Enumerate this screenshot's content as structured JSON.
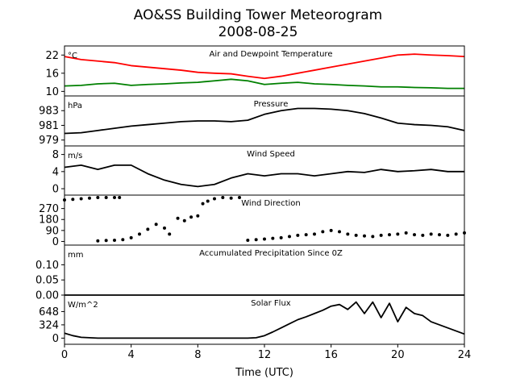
{
  "title": "AO&SS Building Tower Meteorogram",
  "subtitle": "2008-08-25",
  "xlabel": "Time (UTC)",
  "x_ticks": [
    "0",
    "4",
    "8",
    "12",
    "16",
    "20",
    "24"
  ],
  "colors": {
    "temperature": "#ff0000",
    "dewpoint": "#008000",
    "line": "#000000"
  },
  "chart_data": [
    {
      "type": "line",
      "label": "Air and Dewpoint Temperature",
      "unit": "°C",
      "ylim": [
        8.5,
        25
      ],
      "yticks": [
        "22",
        "16",
        "10"
      ],
      "x": [
        0,
        1,
        2,
        3,
        4,
        5,
        6,
        7,
        8,
        9,
        10,
        11,
        12,
        13,
        14,
        15,
        16,
        17,
        18,
        19,
        20,
        21,
        22,
        23,
        24
      ],
      "series": [
        {
          "values": [
            21.5,
            20.5,
            20.0,
            19.5,
            18.5,
            18.0,
            17.5,
            17.0,
            16.3,
            16.0,
            15.8,
            15.0,
            14.3,
            15.0,
            16.0,
            17.0,
            18.0,
            19.0,
            20.0,
            21.0,
            22.0,
            22.3,
            22.0,
            21.8,
            21.5
          ]
        },
        {
          "values": [
            11.8,
            12.0,
            12.5,
            12.7,
            12.0,
            12.3,
            12.5,
            12.8,
            13.0,
            13.5,
            14.0,
            13.5,
            12.3,
            12.7,
            13.0,
            12.5,
            12.3,
            12.0,
            11.8,
            11.5,
            11.5,
            11.3,
            11.2,
            11.0,
            11.0
          ]
        }
      ]
    },
    {
      "type": "line",
      "label": "Pressure",
      "unit": "hPa",
      "ylim": [
        978.2,
        985
      ],
      "yticks": [
        "983",
        "981",
        "979"
      ],
      "x": [
        0,
        1,
        2,
        3,
        4,
        5,
        6,
        7,
        8,
        9,
        10,
        11,
        12,
        13,
        14,
        15,
        16,
        17,
        18,
        19,
        20,
        21,
        22,
        23,
        24
      ],
      "series": [
        {
          "values": [
            979.9,
            980.0,
            980.3,
            980.6,
            980.9,
            981.1,
            981.3,
            981.5,
            981.6,
            981.6,
            981.5,
            981.7,
            982.5,
            983.0,
            983.3,
            983.3,
            983.2,
            983.0,
            982.6,
            982.0,
            981.3,
            981.1,
            981.0,
            980.8,
            980.3
          ]
        }
      ]
    },
    {
      "type": "line",
      "label": "Wind Speed",
      "unit": "m/s",
      "ylim": [
        -1.5,
        10
      ],
      "yticks": [
        "8",
        "4",
        "0"
      ],
      "x": [
        0,
        1,
        2,
        3,
        4,
        5,
        6,
        7,
        8,
        9,
        10,
        11,
        12,
        13,
        14,
        15,
        16,
        17,
        18,
        19,
        20,
        21,
        22,
        23,
        24
      ],
      "series": [
        {
          "values": [
            5.0,
            5.5,
            4.5,
            5.5,
            5.5,
            3.5,
            2.0,
            1.0,
            0.5,
            1.0,
            2.5,
            3.5,
            3.0,
            3.5,
            3.5,
            3.0,
            3.5,
            4.0,
            3.8,
            4.5,
            4.0,
            4.2,
            4.5,
            4.0,
            4.0
          ]
        }
      ]
    },
    {
      "type": "scatter",
      "label": "Wind Direction",
      "ylim": [
        -30,
        380
      ],
      "yticks": [
        "270",
        "180",
        "90",
        "0"
      ],
      "x": [
        0,
        0.5,
        1,
        1.5,
        2,
        2.5,
        3,
        3.3,
        2,
        2.5,
        3,
        3.5,
        4,
        4.5,
        5,
        5.5,
        6,
        6.3,
        6.8,
        7.2,
        7.6,
        8,
        8.3,
        8.6,
        9,
        9.5,
        10,
        10.5,
        11,
        11.5,
        12,
        12.5,
        13,
        13.5,
        14,
        14.5,
        15,
        15.5,
        16,
        16.5,
        17,
        17.5,
        18,
        18.5,
        19,
        19.5,
        20,
        20.5,
        21,
        21.5,
        22,
        22.5,
        23,
        23.5,
        24
      ],
      "series": [
        {
          "values": [
            340,
            345,
            350,
            355,
            360,
            360,
            360,
            360,
            5,
            8,
            10,
            15,
            30,
            60,
            100,
            140,
            110,
            60,
            190,
            170,
            200,
            210,
            310,
            330,
            350,
            360,
            355,
            360,
            10,
            15,
            20,
            25,
            30,
            40,
            50,
            55,
            60,
            80,
            90,
            80,
            60,
            50,
            45,
            40,
            50,
            55,
            60,
            70,
            55,
            50,
            60,
            55,
            50,
            60,
            70
          ]
        }
      ]
    },
    {
      "type": "line",
      "label": "Accumulated Precipitation Since 0Z",
      "unit": "mm",
      "ylim": [
        0,
        0.165
      ],
      "yticks": [
        "0.10",
        "0.05",
        "0.00"
      ],
      "x": [
        0,
        24
      ],
      "series": [
        {
          "values": [
            0.0,
            0.0
          ]
        }
      ]
    },
    {
      "type": "line",
      "label": "Solar Flux",
      "unit": "W/m^2",
      "ylim": [
        -150,
        1050
      ],
      "yticks": [
        "648",
        "324",
        "0"
      ],
      "x": [
        0,
        0.5,
        1,
        2,
        4,
        6,
        8,
        10,
        11,
        11.5,
        12,
        12.5,
        13,
        13.5,
        14,
        14.5,
        15,
        15.5,
        16,
        16.5,
        17,
        17.5,
        18,
        18.5,
        19,
        19.5,
        20,
        20.5,
        21,
        21.5,
        22,
        23,
        24
      ],
      "series": [
        {
          "values": [
            120,
            60,
            20,
            0,
            0,
            0,
            0,
            0,
            0,
            10,
            60,
            150,
            250,
            350,
            450,
            520,
            600,
            680,
            780,
            820,
            700,
            880,
            600,
            880,
            500,
            850,
            400,
            750,
            600,
            550,
            400,
            250,
            100
          ]
        }
      ]
    }
  ]
}
